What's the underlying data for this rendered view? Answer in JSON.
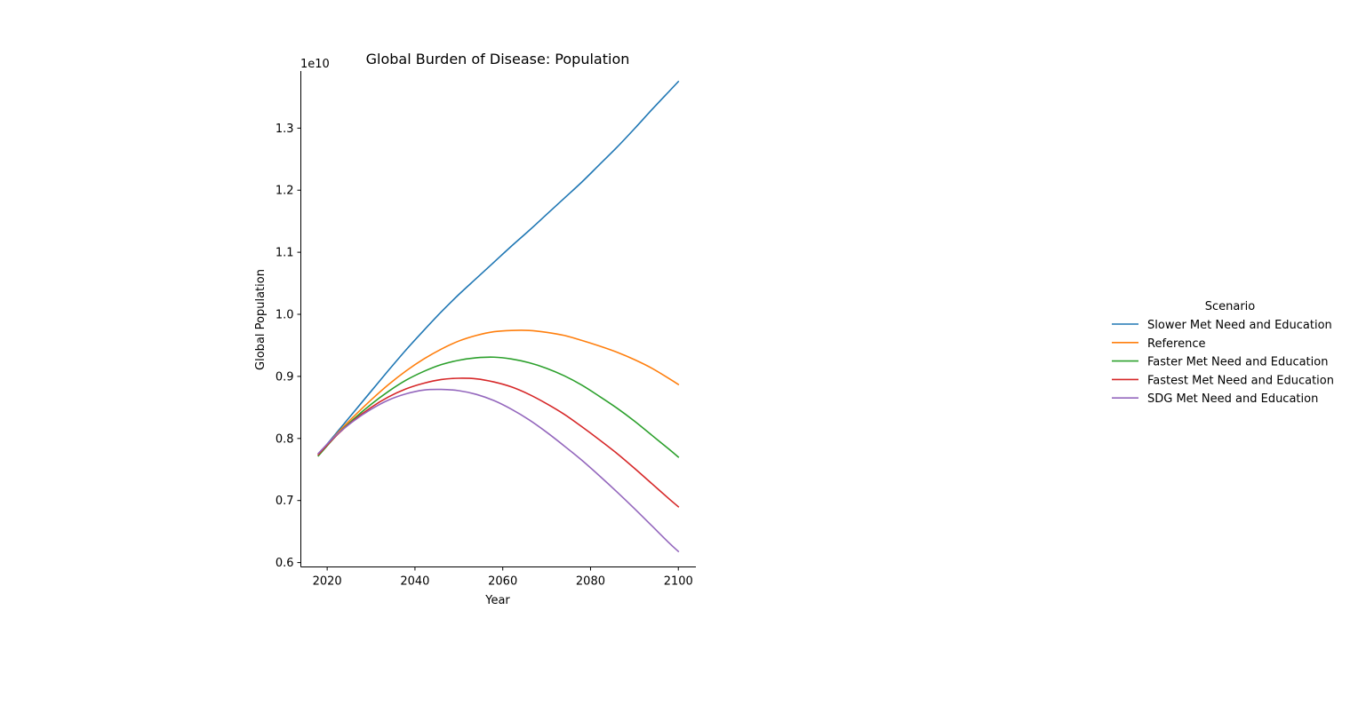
{
  "chart_data": {
    "type": "line",
    "title": "Global Burden of Disease: Population",
    "xlabel": "Year",
    "ylabel": "Global Population",
    "y_offset_text": "1e10",
    "xlim": [
      2014,
      2104
    ],
    "ylim": [
      5930000000.0,
      13920000000.0
    ],
    "xticks": [
      2020,
      2040,
      2060,
      2080,
      2100
    ],
    "yticks": [
      6000000000.0,
      7000000000.0,
      8000000000.0,
      9000000000.0,
      10000000000.0,
      11000000000.0,
      12000000000.0,
      13000000000.0
    ],
    "ytick_labels": [
      "0.6",
      "0.7",
      "0.8",
      "0.9",
      "1.0",
      "1.1",
      "1.2",
      "1.3"
    ],
    "grid": false,
    "legend": {
      "title": "Scenario",
      "placement": "right"
    },
    "x": [
      2018,
      2022,
      2026,
      2030,
      2034,
      2038,
      2042,
      2046,
      2050,
      2054,
      2058,
      2062,
      2066,
      2070,
      2074,
      2078,
      2082,
      2086,
      2090,
      2094,
      2098,
      2100
    ],
    "series": [
      {
        "name": "Slower Met Need and Education",
        "color": "#1f77b4",
        "values": [
          7740000000.0,
          8080000000.0,
          8420000000.0,
          8760000000.0,
          9100000000.0,
          9430000000.0,
          9740000000.0,
          10040000000.0,
          10320000000.0,
          10580000000.0,
          10840000000.0,
          11100000000.0,
          11350000000.0,
          11610000000.0,
          11870000000.0,
          12130000000.0,
          12410000000.0,
          12690000000.0,
          12990000000.0,
          13300000000.0,
          13600000000.0,
          13750000000.0
        ]
      },
      {
        "name": "Reference",
        "color": "#ff7f0e",
        "values": [
          7740000000.0,
          8060000000.0,
          8350000000.0,
          8620000000.0,
          8870000000.0,
          9090000000.0,
          9280000000.0,
          9440000000.0,
          9570000000.0,
          9660000000.0,
          9720000000.0,
          9740000000.0,
          9740000000.0,
          9710000000.0,
          9660000000.0,
          9580000000.0,
          9490000000.0,
          9390000000.0,
          9270000000.0,
          9130000000.0,
          8960000000.0,
          8870000000.0
        ]
      },
      {
        "name": "Faster Met Need and Education",
        "color": "#2ca02c",
        "values": [
          7720000000.0,
          8040000000.0,
          8310000000.0,
          8550000000.0,
          8760000000.0,
          8940000000.0,
          9080000000.0,
          9190000000.0,
          9260000000.0,
          9300000000.0,
          9310000000.0,
          9280000000.0,
          9220000000.0,
          9130000000.0,
          9010000000.0,
          8860000000.0,
          8680000000.0,
          8490000000.0,
          8280000000.0,
          8050000000.0,
          7820000000.0,
          7700000000.0
        ]
      },
      {
        "name": "Fastest Met Need and Education",
        "color": "#d62728",
        "values": [
          7740000000.0,
          8040000000.0,
          8290000000.0,
          8500000000.0,
          8670000000.0,
          8800000000.0,
          8890000000.0,
          8950000000.0,
          8970000000.0,
          8960000000.0,
          8910000000.0,
          8830000000.0,
          8710000000.0,
          8560000000.0,
          8390000000.0,
          8190000000.0,
          7980000000.0,
          7760000000.0,
          7520000000.0,
          7270000000.0,
          7020000000.0,
          6900000000.0
        ]
      },
      {
        "name": "SDG Met Need and Education",
        "color": "#9467bd",
        "values": [
          7760000000.0,
          8050000000.0,
          8280000000.0,
          8470000000.0,
          8620000000.0,
          8720000000.0,
          8780000000.0,
          8790000000.0,
          8770000000.0,
          8710000000.0,
          8610000000.0,
          8470000000.0,
          8300000000.0,
          8100000000.0,
          7880000000.0,
          7650000000.0,
          7400000000.0,
          7140000000.0,
          6870000000.0,
          6590000000.0,
          6310000000.0,
          6180000000.0
        ]
      }
    ]
  }
}
